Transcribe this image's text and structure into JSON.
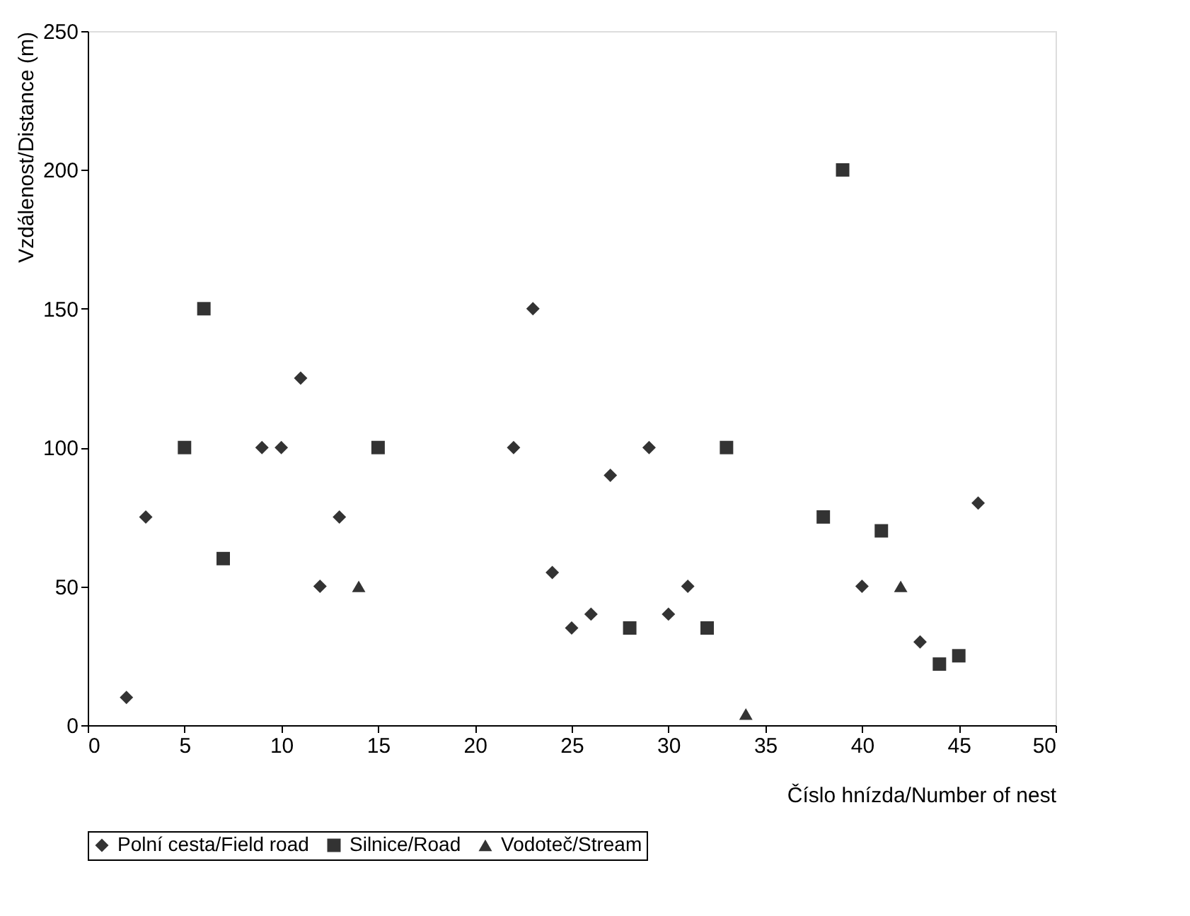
{
  "chart_data": {
    "type": "scatter",
    "xlabel": "Číslo hnízda/Number of nest",
    "ylabel": "Vzdálenost/Distance (m)",
    "xlim": [
      0,
      50
    ],
    "xticks": [
      0,
      5,
      10,
      15,
      20,
      25,
      30,
      35,
      40,
      45,
      50
    ],
    "ylim": [
      0,
      250
    ],
    "yticks": [
      0,
      50,
      100,
      150,
      200,
      250
    ],
    "grid": false,
    "legend": "bottom",
    "series": [
      {
        "name": "Polní cesta/Field road",
        "color": "#333333",
        "marker": "diamond",
        "x": [
          2,
          3,
          9,
          10,
          11,
          12,
          13,
          22,
          23,
          24,
          25,
          26,
          27,
          29,
          30,
          31,
          40,
          43,
          46
        ],
        "values": [
          10,
          75,
          100,
          100,
          125,
          50,
          75,
          100,
          150,
          55,
          35,
          40,
          90,
          100,
          40,
          50,
          50,
          30,
          80
        ]
      },
      {
        "name": "Silnice/Road",
        "color": "#333333",
        "marker": "square",
        "x": [
          5,
          6,
          7,
          15,
          28,
          32,
          33,
          38,
          39,
          41,
          44,
          45
        ],
        "values": [
          100,
          150,
          60,
          100,
          35,
          35,
          100,
          75,
          200,
          70,
          22,
          25
        ]
      },
      {
        "name": "Vodoteč/Stream",
        "color": "#333333",
        "marker": "triangle",
        "x": [
          14,
          34,
          42
        ],
        "values": [
          50,
          4,
          50
        ]
      }
    ]
  }
}
